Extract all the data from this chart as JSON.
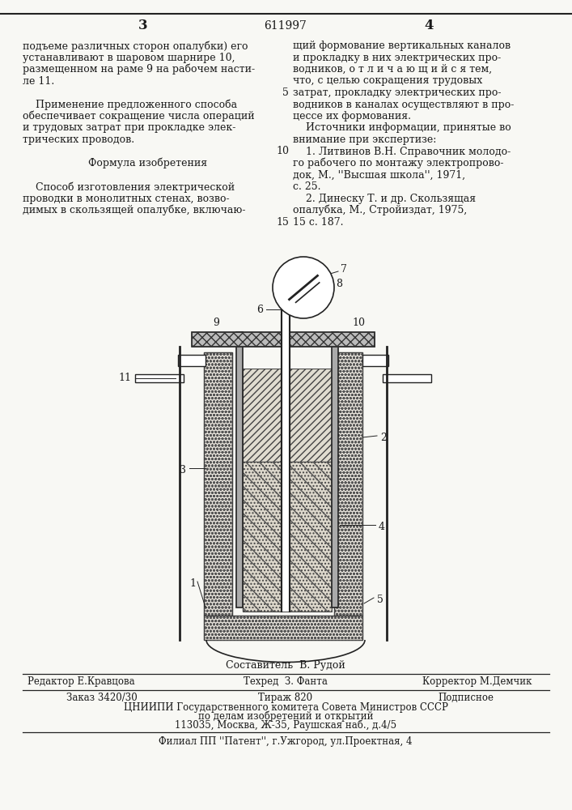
{
  "patent_number": "611997",
  "page_left": "3",
  "page_right": "4",
  "text_col_left": [
    "подъеме различных сторон опалубки) его",
    "устанавливают в шаровом шарнире 10,",
    "размещенном на раме 9 на рабочем насти-",
    "ле 11.",
    "",
    "    Применение предложенного способа",
    "обеспечивает сокращение числа операций",
    "и трудовых затрат при прокладке элек-",
    "трических проводов.",
    "",
    "         Формула изобретения",
    "",
    "    Способ изготовления электрической",
    "проводки в монолитных стенах, возво-",
    "димых в скользящей опалубке, включаю-"
  ],
  "text_col_right_lines": [
    "щий формование вертикальных каналов",
    "и прокладку в них электрических про-",
    "водников, о т л и ч а ю щ и й с я тем,",
    "что, с целью сокращения трудовых",
    "затрат, прокладку электрических про-",
    "водников в каналах осуществляют в про-",
    "цессе их формования.",
    "    Источники информации, принятые во",
    "внимание при экспертизе:",
    "    1. Литвинов В.Н. Справочник молодо-",
    "го рабочего по монтажу электропрово-",
    "док, М., ''Высшая школа'', 1971,",
    "с. 25.",
    "    2. Динеску Т. и др. Скользящая",
    "опалубка, М., Стройиздат, 1975,",
    "15 с. 187."
  ],
  "footer_sestavitel": "Составитель  В. Рудой",
  "footer_redaktor": "Редактор Е.Кравцова",
  "footer_tekhred": "Техред  З. Фанта",
  "footer_korrektor": "Корректор М.Демчик",
  "footer_zakaz": "Заказ 3420/30",
  "footer_tirazh": "Тираж 820",
  "footer_podpisnoe": "Подписное",
  "footer_tsniipи": "ЦНИИПИ Государственного комитета Совета Министров СССР",
  "footer_po_delam": "по делам изобретений и открытий",
  "footer_address": "113035, Москва, Ж-35, Раушская наб., д.4/5",
  "footer_filial": "Филиал ПП ''Патент'', г.Ужгород, ул.Проектная, 4",
  "bg_color": "#f8f8f4",
  "text_color": "#1a1a1a",
  "line_color": "#222222"
}
